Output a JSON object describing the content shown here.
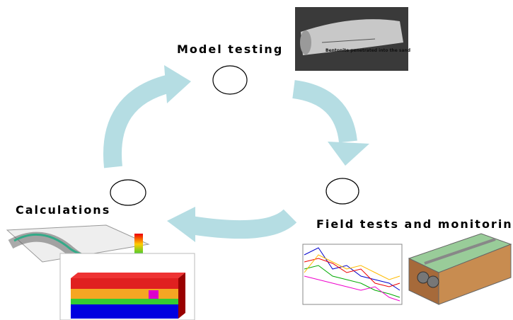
{
  "nodes": [
    {
      "label": "Model testing"
    },
    {
      "label": "Field tests and monitoring"
    },
    {
      "label": "Calculations"
    }
  ],
  "photo": {
    "caption": "Bentonite penetrated into the sand"
  }
}
